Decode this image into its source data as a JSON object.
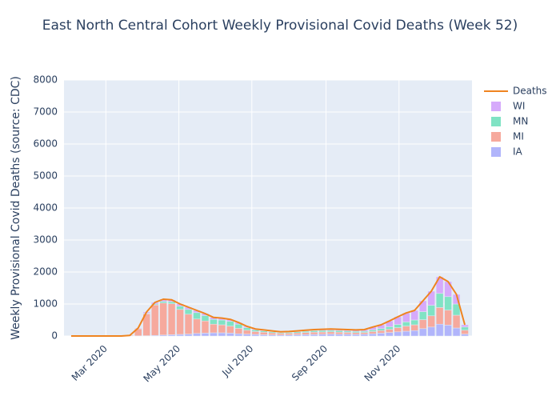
{
  "chart_data": {
    "type": "bar",
    "barmode": "stack",
    "title": "East North Central Cohort Weekly Provisional Covid Deaths (Week 52)",
    "y_label": "Weekly Provisional Covid Deaths (source: CDC)",
    "x": [
      "2020-02-01",
      "2020-02-08",
      "2020-02-15",
      "2020-02-22",
      "2020-02-29",
      "2020-03-07",
      "2020-03-14",
      "2020-03-21",
      "2020-03-28",
      "2020-04-04",
      "2020-04-11",
      "2020-04-18",
      "2020-04-25",
      "2020-05-02",
      "2020-05-09",
      "2020-05-16",
      "2020-05-23",
      "2020-05-30",
      "2020-06-06",
      "2020-06-13",
      "2020-06-20",
      "2020-06-27",
      "2020-07-04",
      "2020-07-11",
      "2020-07-18",
      "2020-07-25",
      "2020-08-01",
      "2020-08-08",
      "2020-08-15",
      "2020-08-22",
      "2020-08-29",
      "2020-09-05",
      "2020-09-12",
      "2020-09-19",
      "2020-09-26",
      "2020-10-03",
      "2020-10-10",
      "2020-10-17",
      "2020-10-24",
      "2020-10-31",
      "2020-11-07",
      "2020-11-14",
      "2020-11-21",
      "2020-11-28",
      "2020-12-05",
      "2020-12-12",
      "2020-12-19",
      "2020-12-26"
    ],
    "xlim": [
      "2020-01-26",
      "2021-01-01"
    ],
    "xticks": [
      {
        "value": "2020-03-01",
        "label": "Mar 2020"
      },
      {
        "value": "2020-05-01",
        "label": "May 2020"
      },
      {
        "value": "2020-07-01",
        "label": "Jul 2020"
      },
      {
        "value": "2020-09-01",
        "label": "Sep 2020"
      },
      {
        "value": "2020-11-01",
        "label": "Nov 2020"
      }
    ],
    "ylim": [
      0,
      8000
    ],
    "yticks": [
      0,
      1000,
      2000,
      3000,
      4000,
      5000,
      6000,
      7000,
      8000
    ],
    "grid": true,
    "legend": "right",
    "series": [
      {
        "name": "Deaths",
        "type": "line",
        "color": "#ef8420",
        "values": [
          0,
          0,
          0,
          0,
          0,
          0,
          0,
          20,
          250,
          750,
          1050,
          1150,
          1130,
          1000,
          900,
          800,
          700,
          580,
          560,
          520,
          420,
          300,
          220,
          190,
          160,
          130,
          140,
          160,
          180,
          200,
          210,
          220,
          210,
          200,
          190,
          200,
          280,
          350,
          470,
          600,
          720,
          800,
          1100,
          1400,
          1850,
          1700,
          1300,
          350
        ]
      },
      {
        "name": "IA",
        "color": "#b1b5fb",
        "values": [
          0,
          0,
          0,
          0,
          0,
          0,
          0,
          0,
          5,
          10,
          20,
          30,
          40,
          50,
          60,
          80,
          90,
          100,
          100,
          90,
          70,
          60,
          50,
          40,
          35,
          30,
          35,
          40,
          45,
          50,
          55,
          60,
          55,
          55,
          50,
          55,
          70,
          90,
          110,
          130,
          150,
          170,
          230,
          280,
          370,
          340,
          250,
          60
        ]
      },
      {
        "name": "MI",
        "color": "#f6a99d",
        "values": [
          0,
          0,
          0,
          0,
          0,
          0,
          0,
          20,
          220,
          680,
          950,
          1000,
          970,
          780,
          620,
          450,
          380,
          270,
          250,
          220,
          170,
          120,
          90,
          80,
          65,
          50,
          50,
          55,
          65,
          70,
          70,
          70,
          65,
          60,
          55,
          55,
          70,
          80,
          100,
          130,
          160,
          180,
          280,
          350,
          520,
          470,
          400,
          120
        ]
      },
      {
        "name": "MN",
        "color": "#80e3c4",
        "values": [
          0,
          0,
          0,
          0,
          0,
          0,
          0,
          0,
          5,
          20,
          30,
          50,
          60,
          100,
          150,
          200,
          170,
          150,
          150,
          150,
          130,
          80,
          50,
          40,
          35,
          25,
          30,
          35,
          40,
          45,
          45,
          45,
          45,
          40,
          40,
          40,
          50,
          60,
          80,
          100,
          130,
          150,
          250,
          330,
          440,
          420,
          350,
          100
        ]
      },
      {
        "name": "WI",
        "color": "#d6aafb",
        "values": [
          0,
          0,
          0,
          0,
          0,
          0,
          0,
          0,
          20,
          40,
          50,
          70,
          60,
          70,
          70,
          70,
          60,
          60,
          60,
          60,
          50,
          40,
          30,
          30,
          25,
          25,
          25,
          30,
          30,
          35,
          40,
          45,
          45,
          45,
          45,
          50,
          90,
          120,
          180,
          240,
          280,
          300,
          340,
          440,
          520,
          470,
          300,
          70
        ]
      }
    ]
  }
}
